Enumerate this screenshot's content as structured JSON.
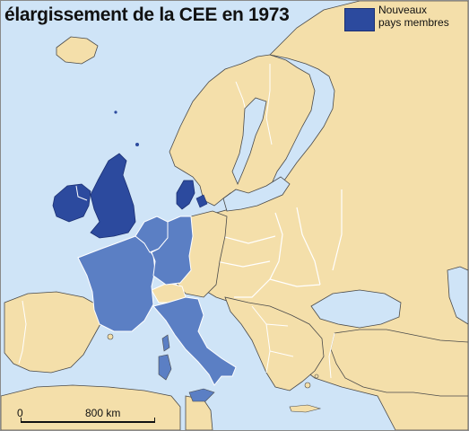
{
  "map": {
    "title": "élargissement de la CEE en 1973",
    "legend": {
      "label_line1": "Nouveaux",
      "label_line2": "pays membres",
      "swatch_color": "#2c4a9e"
    },
    "scale": {
      "start_label": "0",
      "end_label": "800 km"
    },
    "colors": {
      "sea": "#cfe4f7",
      "land": "#f4dfaa",
      "new_members": "#2c4a9e",
      "founding_members": "#5b7fc4",
      "border": "#ffffff",
      "coast": "#4a4a4a"
    },
    "regions": {
      "new_members": [
        "Royaume-Uni",
        "Irlande",
        "Danemark"
      ],
      "founding_members": [
        "France",
        "Allemagne de l'Ouest",
        "Belgique",
        "Pays-Bas",
        "Luxembourg",
        "Italie"
      ]
    }
  }
}
